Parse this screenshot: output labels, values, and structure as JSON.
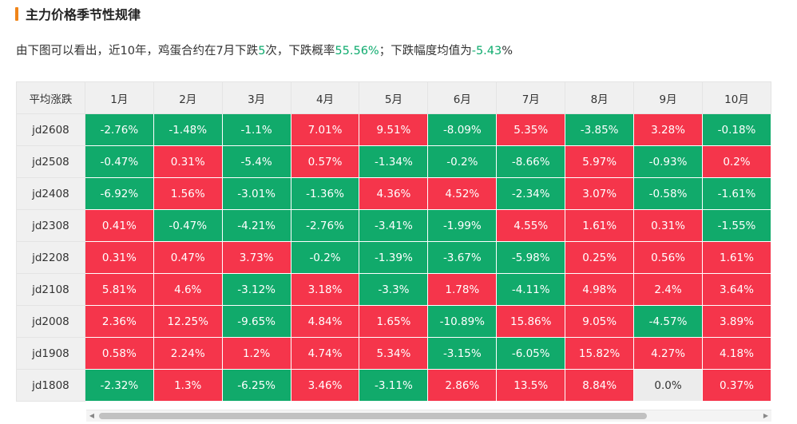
{
  "section": {
    "title": "主力价格季节性规律"
  },
  "summary": {
    "part1": "由下图可以看出，近10年，鸡蛋合约在7月下跌",
    "count": "5",
    "part2": "次，下跌概率",
    "prob": "55.56%",
    "part3": "；下跌幅度均值为",
    "avg": "-5.43",
    "part4": "%"
  },
  "table": {
    "corner": "平均涨跌",
    "columns": [
      "1月",
      "2月",
      "3月",
      "4月",
      "5月",
      "6月",
      "7月",
      "8月",
      "9月",
      "10月"
    ],
    "rows": [
      {
        "name": "jd2608",
        "values": [
          "-2.76%",
          "-1.48%",
          "-1.1%",
          "7.01%",
          "9.51%",
          "-8.09%",
          "5.35%",
          "-3.85%",
          "3.28%",
          "-0.18%"
        ]
      },
      {
        "name": "jd2508",
        "values": [
          "-0.47%",
          "0.31%",
          "-5.4%",
          "0.57%",
          "-1.34%",
          "-0.2%",
          "-8.66%",
          "5.97%",
          "-0.93%",
          "0.2%"
        ]
      },
      {
        "name": "jd2408",
        "values": [
          "-6.92%",
          "1.56%",
          "-3.01%",
          "-1.36%",
          "4.36%",
          "4.52%",
          "-2.34%",
          "3.07%",
          "-0.58%",
          "-1.61%"
        ]
      },
      {
        "name": "jd2308",
        "values": [
          "0.41%",
          "-0.47%",
          "-4.21%",
          "-2.76%",
          "-3.41%",
          "-1.99%",
          "4.55%",
          "1.61%",
          "0.31%",
          "-1.55%"
        ]
      },
      {
        "name": "jd2208",
        "values": [
          "0.31%",
          "0.47%",
          "3.73%",
          "-0.2%",
          "-1.39%",
          "-3.67%",
          "-5.98%",
          "0.25%",
          "0.56%",
          "1.61%"
        ]
      },
      {
        "name": "jd2108",
        "values": [
          "5.81%",
          "4.6%",
          "-3.12%",
          "3.18%",
          "-3.3%",
          "1.78%",
          "-4.11%",
          "4.98%",
          "2.4%",
          "3.64%"
        ]
      },
      {
        "name": "jd2008",
        "values": [
          "2.36%",
          "12.25%",
          "-9.65%",
          "4.84%",
          "1.65%",
          "-10.89%",
          "15.86%",
          "9.05%",
          "-4.57%",
          "3.89%"
        ]
      },
      {
        "name": "jd1908",
        "values": [
          "0.58%",
          "2.24%",
          "1.2%",
          "4.74%",
          "5.34%",
          "-3.15%",
          "-6.05%",
          "15.82%",
          "4.27%",
          "4.18%"
        ]
      },
      {
        "name": "jd1808",
        "values": [
          "-2.32%",
          "1.3%",
          "-6.25%",
          "3.46%",
          "-3.11%",
          "2.86%",
          "13.5%",
          "8.84%",
          "0.0%",
          "0.37%"
        ]
      }
    ]
  },
  "colors": {
    "up": "#f5354b",
    "down": "#11aa6b",
    "flat": "#ececec",
    "accent": "#f08519",
    "highlight_text": "#0eab6e"
  },
  "scrollbar": {
    "left_icon": "chevron-left-icon",
    "right_icon": "chevron-right-icon"
  }
}
